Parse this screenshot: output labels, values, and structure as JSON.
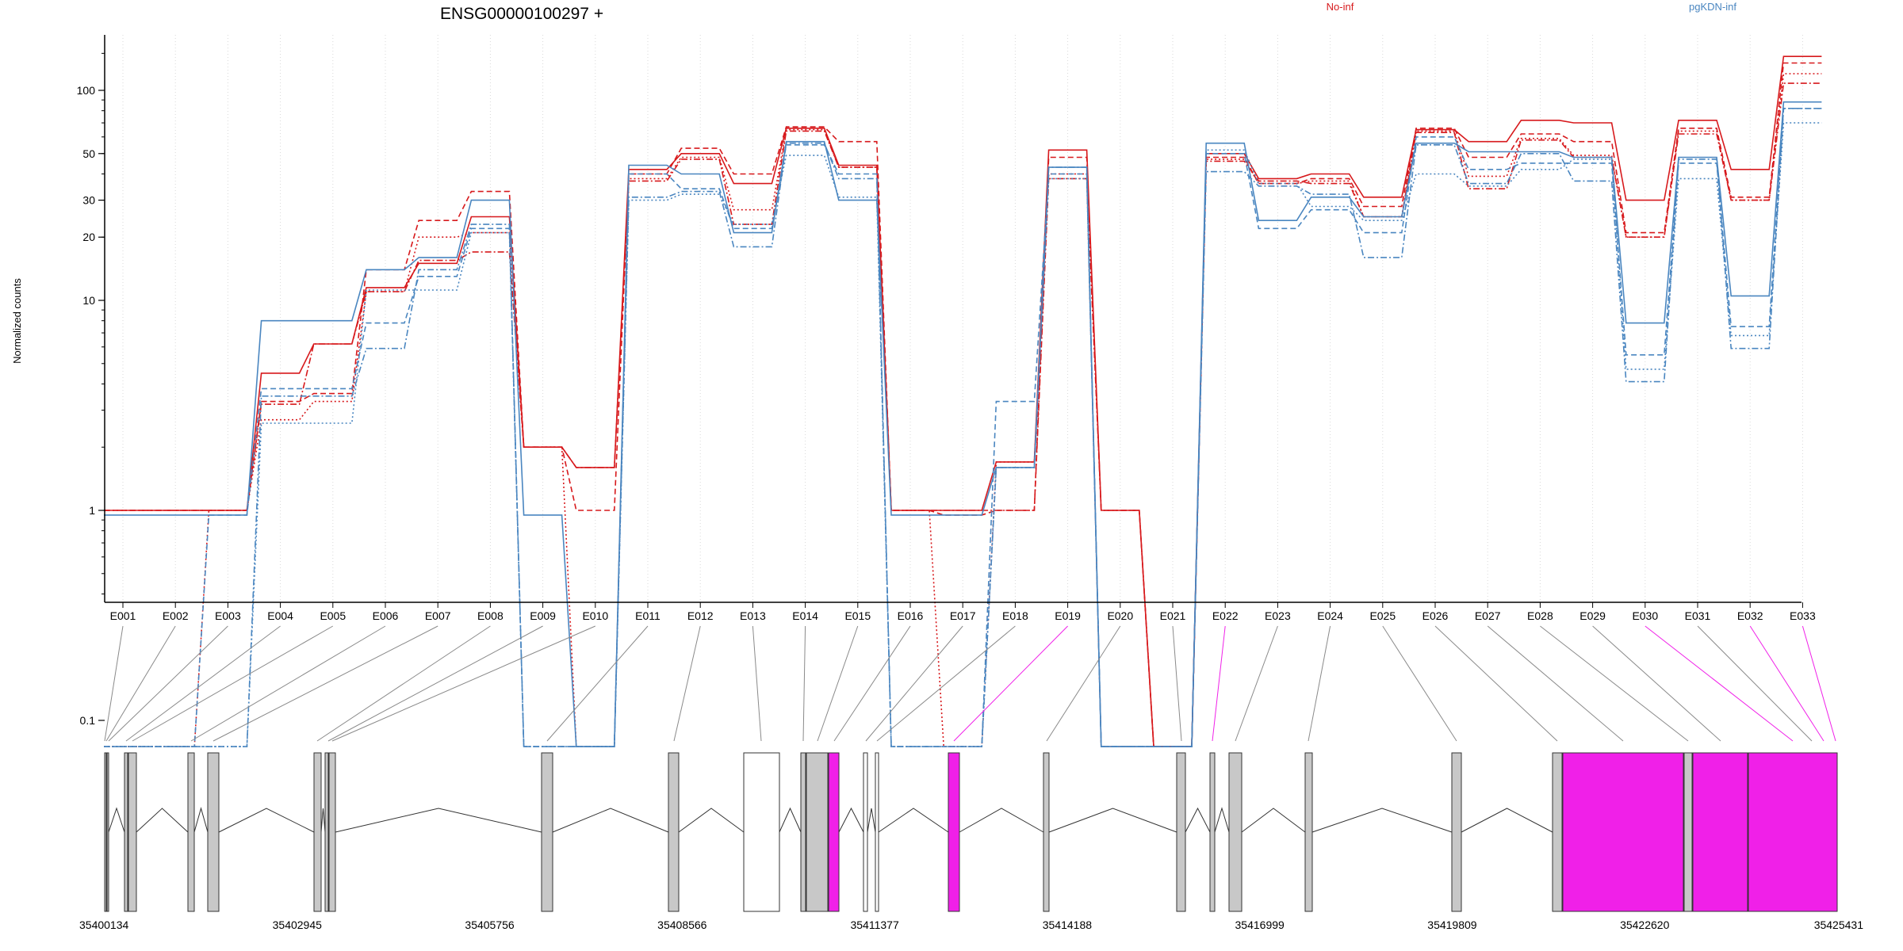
{
  "chart_data": {
    "type": "line",
    "title": "ENSG00000100297 +",
    "ylabel": "Normalized counts",
    "yscale": "log",
    "yticks": [
      0.1,
      1,
      10,
      20,
      30,
      50,
      100
    ],
    "ytick_labels": [
      "0.1",
      "1",
      "10",
      "20",
      "30",
      "50",
      "100"
    ],
    "ylim": [
      0.08,
      160
    ],
    "grid": "vertical dotted lines at exon centers",
    "legend": [
      {
        "name": "No-inf",
        "color": "#d7191c"
      },
      {
        "name": "pgKDN-inf",
        "color": "#4a86c0"
      }
    ],
    "categories": [
      "E001",
      "E002",
      "E003",
      "E004",
      "E005",
      "E006",
      "E007",
      "E008",
      "E009",
      "E010",
      "E011",
      "E012",
      "E013",
      "E014",
      "E015",
      "E016",
      "E017",
      "E018",
      "E019",
      "E020",
      "E021",
      "E022",
      "E023",
      "E024",
      "E025",
      "E026",
      "E027",
      "E028",
      "E029",
      "E030",
      "E031",
      "E032",
      "E033"
    ],
    "series": [
      {
        "group": "No-inf",
        "color": "#d7191c",
        "dash": "solid",
        "values": [
          1.0,
          1.0,
          1.0,
          4.5,
          6.2,
          11.5,
          15.0,
          25.0,
          2.0,
          1.6,
          42.0,
          50.0,
          36.0,
          66.0,
          44.0,
          1.0,
          1.0,
          1.7,
          52.0,
          1.0,
          0.075,
          50.0,
          38.0,
          40.0,
          31.0,
          65.0,
          57.0,
          72.0,
          70.0,
          30.0,
          72.0,
          42.0,
          145.0
        ]
      },
      {
        "group": "No-inf",
        "color": "#d7191c",
        "dash": "dashed",
        "values": [
          1.0,
          1.0,
          1.0,
          3.3,
          3.6,
          14.0,
          24.0,
          33.0,
          2.0,
          1.0,
          40.0,
          53.0,
          40.0,
          67.0,
          57.0,
          1.0,
          0.95,
          1.0,
          48.0,
          1.0,
          0.075,
          48.0,
          36.0,
          38.0,
          28.0,
          66.0,
          48.0,
          62.0,
          57.0,
          21.0,
          66.0,
          31.0,
          135.0
        ]
      },
      {
        "group": "No-inf",
        "color": "#d7191c",
        "dash": "dotted",
        "values": [
          0.075,
          0.075,
          1.0,
          2.7,
          3.3,
          11.0,
          20.0,
          21.0,
          2.0,
          0.075,
          38.0,
          48.0,
          27.0,
          65.0,
          43.0,
          1.0,
          0.075,
          1.7,
          40.0,
          0.075,
          0.075,
          47.0,
          36.0,
          37.0,
          25.0,
          64.0,
          39.0,
          59.0,
          49.0,
          20.0,
          64.0,
          30.0,
          120.0
        ]
      },
      {
        "group": "No-inf",
        "color": "#d7191c",
        "dash": "dashdot",
        "values": [
          1.0,
          1.0,
          1.0,
          3.2,
          6.2,
          11.0,
          15.5,
          17.0,
          2.0,
          1.6,
          37.0,
          47.0,
          23.0,
          64.0,
          43.0,
          1.0,
          1.0,
          1.0,
          38.0,
          1.0,
          0.075,
          46.0,
          37.0,
          36.0,
          25.0,
          63.0,
          34.0,
          58.0,
          48.0,
          20.0,
          62.0,
          30.0,
          108.0
        ]
      },
      {
        "group": "pgKDN-inf",
        "color": "#4a86c0",
        "dash": "solid",
        "values": [
          0.95,
          0.95,
          0.95,
          8.0,
          8.0,
          14.0,
          16.0,
          30.0,
          0.95,
          0.075,
          44.0,
          40.0,
          21.0,
          57.0,
          30.0,
          0.95,
          0.95,
          1.6,
          43.0,
          0.075,
          0.075,
          56.0,
          24.0,
          31.0,
          25.0,
          56.0,
          51.0,
          51.0,
          48.0,
          7.8,
          48.0,
          10.5,
          88.0
        ]
      },
      {
        "group": "pgKDN-inf",
        "color": "#4a86c0",
        "dash": "dashed",
        "values": [
          0.075,
          0.075,
          0.95,
          3.8,
          3.8,
          7.8,
          13.0,
          22.0,
          0.075,
          0.075,
          40.0,
          34.0,
          22.0,
          55.0,
          40.0,
          0.075,
          0.075,
          3.3,
          40.0,
          0.075,
          0.075,
          50.0,
          22.0,
          27.0,
          21.0,
          60.0,
          42.0,
          45.0,
          45.0,
          5.5,
          45.0,
          7.5,
          82.0
        ]
      },
      {
        "group": "pgKDN-inf",
        "color": "#4a86c0",
        "dash": "dotted",
        "values": [
          0.075,
          0.075,
          0.075,
          2.6,
          2.6,
          11.2,
          11.2,
          21.0,
          0.075,
          0.075,
          30.0,
          32.0,
          23.0,
          49.0,
          31.0,
          0.075,
          0.075,
          1.6,
          38.0,
          0.075,
          0.075,
          52.0,
          36.0,
          28.0,
          24.0,
          40.0,
          35.0,
          42.0,
          47.0,
          4.7,
          38.0,
          6.8,
          70.0
        ]
      },
      {
        "group": "pgKDN-inf",
        "color": "#4a86c0",
        "dash": "dashdot",
        "values": [
          0.075,
          0.075,
          0.075,
          3.5,
          3.5,
          5.9,
          14.0,
          23.0,
          0.075,
          0.075,
          31.0,
          33.0,
          18.0,
          56.0,
          38.0,
          0.075,
          0.075,
          1.6,
          43.0,
          0.075,
          0.075,
          41.0,
          35.0,
          32.0,
          16.0,
          55.0,
          36.0,
          50.0,
          37.0,
          4.1,
          47.0,
          5.9,
          82.0
        ]
      }
    ],
    "genomic_axis": {
      "ticks": [
        "35400134",
        "35402945",
        "35405756",
        "35408566",
        "35411377",
        "35414188",
        "35416999",
        "35419809",
        "35422620",
        "35425431"
      ]
    },
    "exon_highlight_color": "#f020e8",
    "highlighted_exons": [
      "E019",
      "E022",
      "E030",
      "E032",
      "E033"
    ]
  }
}
